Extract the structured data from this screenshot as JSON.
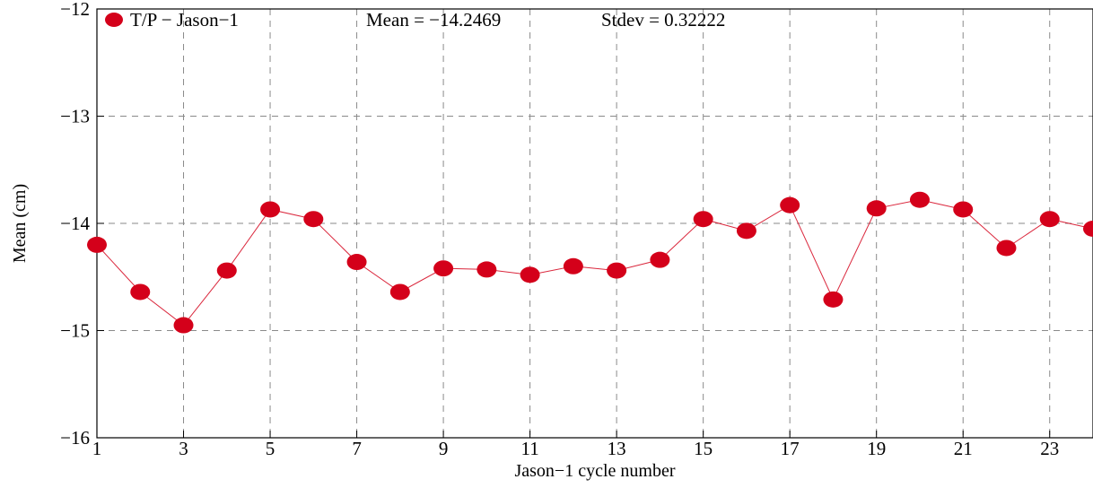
{
  "chart_data": {
    "type": "line",
    "xlabel": "Jason−1 cycle number",
    "ylabel": "Mean (cm)",
    "xlim": [
      1,
      24
    ],
    "ylim": [
      -16,
      -12
    ],
    "xticks": [
      1,
      3,
      5,
      7,
      9,
      11,
      13,
      15,
      17,
      19,
      21,
      23
    ],
    "xtick_labels": [
      "1",
      "3",
      "5",
      "7",
      "9",
      "11",
      "13",
      "15",
      "17",
      "19",
      "21",
      "23"
    ],
    "yticks": [
      -16,
      -15,
      -14,
      -13,
      -12
    ],
    "ytick_labels": [
      "−16",
      "−15",
      "−14",
      "−13",
      "−12"
    ],
    "grid": true,
    "legend_position": "top-left",
    "series": [
      {
        "name": "T/P − Jason−1",
        "color": "#d4001a",
        "marker": "circle",
        "x": [
          1,
          2,
          3,
          4,
          5,
          6,
          7,
          8,
          9,
          10,
          11,
          12,
          13,
          14,
          15,
          16,
          17,
          18,
          19,
          20,
          21,
          22,
          23,
          24
        ],
        "y": [
          -14.2,
          -14.64,
          -14.95,
          -14.44,
          -13.87,
          -13.96,
          -14.36,
          -14.64,
          -14.42,
          -14.43,
          -14.48,
          -14.4,
          -14.44,
          -14.34,
          -13.96,
          -14.07,
          -13.83,
          -14.71,
          -13.86,
          -13.78,
          -13.87,
          -14.23,
          -13.96,
          -14.05
        ]
      }
    ],
    "annotations": [
      {
        "id": "mean",
        "text": "Mean = −14.2469"
      },
      {
        "id": "stdev",
        "text": "Stdev = 0.32222"
      }
    ]
  }
}
